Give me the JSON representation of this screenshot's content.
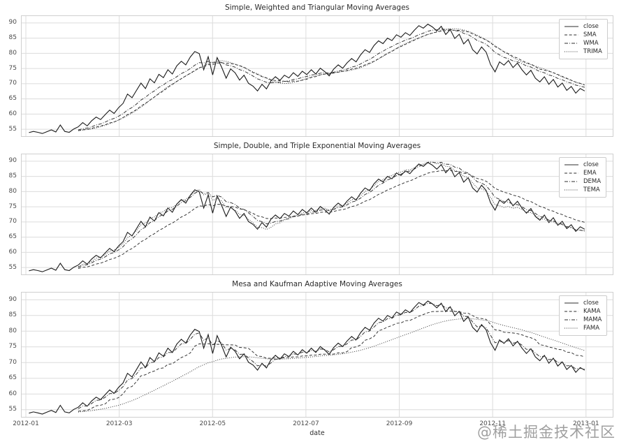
{
  "figure": {
    "watermark": "@稀土掘金技术社区",
    "xlabel": "date",
    "x_tick_labels": [
      "2012-01",
      "2012-03",
      "2012-05",
      "2012-07",
      "2012-09",
      "2012-11",
      "2013-01"
    ],
    "y_tick_labels": [
      90,
      85,
      80,
      75,
      70,
      65,
      60,
      55
    ],
    "line_color": "#1a1a1a",
    "ma_color": "#2e2e2e",
    "grid_color": "#dcdcdc",
    "border_color": "#cfcfcf"
  },
  "chart_data": [
    {
      "type": "line",
      "title": "Simple, Weighted and Triangular Moving Averages",
      "x_range": [
        "2012-01",
        "2013-01"
      ],
      "ylim": [
        52.5,
        92.5
      ],
      "yticks": [
        55,
        60,
        65,
        70,
        75,
        80,
        85,
        90
      ],
      "grid": true,
      "legend_position": "upper right",
      "legend": [
        "close",
        "SMA",
        "WMA",
        "TRIMA"
      ],
      "series": [
        {
          "name": "close",
          "line_style": "solid",
          "algo": "raw"
        },
        {
          "name": "SMA",
          "line_style": "dashed",
          "algo": "sma",
          "window": 12,
          "start": 11
        },
        {
          "name": "WMA",
          "line_style": "dashdot",
          "algo": "wma",
          "window": 12,
          "start": 11
        },
        {
          "name": "TRIMA",
          "line_style": "dotted",
          "algo": "trima",
          "window": 12,
          "start": 11
        }
      ],
      "close_values": [
        53.9,
        54.3,
        54.0,
        53.6,
        54.2,
        54.8,
        54.1,
        56.4,
        54.3,
        54.0,
        55.1,
        55.8,
        57.2,
        56.1,
        57.8,
        59.0,
        58.2,
        59.8,
        61.3,
        60.2,
        62.1,
        63.5,
        66.6,
        65.4,
        67.8,
        70.2,
        68.4,
        71.6,
        70.3,
        73.1,
        72.0,
        74.6,
        73.2,
        75.9,
        77.4,
        76.2,
        78.8,
        80.6,
        79.9,
        74.6,
        78.9,
        72.9,
        78.6,
        75.4,
        71.8,
        74.9,
        73.6,
        71.2,
        72.8,
        70.1,
        69.2,
        67.6,
        69.8,
        68.3,
        70.9,
        72.3,
        71.1,
        72.8,
        71.9,
        73.6,
        72.4,
        74.1,
        73.0,
        74.6,
        73.2,
        75.1,
        74.0,
        72.6,
        74.8,
        76.2,
        75.1,
        76.9,
        78.3,
        77.2,
        79.5,
        81.2,
        80.3,
        82.6,
        84.1,
        83.2,
        85.0,
        84.2,
        86.1,
        85.3,
        86.8,
        85.9,
        87.6,
        89.1,
        88.3,
        89.6,
        88.7,
        87.4,
        88.9,
        86.2,
        87.8,
        84.9,
        86.3,
        83.1,
        84.6,
        81.2,
        79.8,
        82.1,
        80.4,
        76.3,
        73.9,
        77.2,
        76.1,
        77.6,
        75.3,
        76.8,
        74.6,
        72.9,
        74.4,
        71.8,
        70.6,
        72.3,
        69.8,
        71.4,
        68.9,
        70.2,
        67.8,
        69.1,
        66.9,
        68.4,
        67.6
      ]
    },
    {
      "type": "line",
      "title": "Simple, Double, and Triple Exponential Moving Averages",
      "x_range": [
        "2012-01",
        "2013-01"
      ],
      "ylim": [
        52.5,
        92.5
      ],
      "yticks": [
        55,
        60,
        65,
        70,
        75,
        80,
        85,
        90
      ],
      "grid": true,
      "legend_position": "upper right",
      "legend": [
        "close",
        "EMA",
        "DEMA",
        "TEMA"
      ],
      "series": [
        {
          "name": "close",
          "line_style": "solid",
          "algo": "raw"
        },
        {
          "name": "EMA",
          "line_style": "dashed",
          "algo": "ema",
          "window": 12,
          "start": 11
        },
        {
          "name": "DEMA",
          "line_style": "dashdot",
          "algo": "dema",
          "window": 12,
          "start": 11
        },
        {
          "name": "TEMA",
          "line_style": "dotted",
          "algo": "tema",
          "window": 12,
          "start": 11
        }
      ],
      "close_values": [
        53.9,
        54.3,
        54.0,
        53.6,
        54.2,
        54.8,
        54.1,
        56.4,
        54.3,
        54.0,
        55.1,
        55.8,
        57.2,
        56.1,
        57.8,
        59.0,
        58.2,
        59.8,
        61.3,
        60.2,
        62.1,
        63.5,
        66.6,
        65.4,
        67.8,
        70.2,
        68.4,
        71.6,
        70.3,
        73.1,
        72.0,
        74.6,
        73.2,
        75.9,
        77.4,
        76.2,
        78.8,
        80.6,
        79.9,
        74.6,
        78.9,
        72.9,
        78.6,
        75.4,
        71.8,
        74.9,
        73.6,
        71.2,
        72.8,
        70.1,
        69.2,
        67.6,
        69.8,
        68.3,
        70.9,
        72.3,
        71.1,
        72.8,
        71.9,
        73.6,
        72.4,
        74.1,
        73.0,
        74.6,
        73.2,
        75.1,
        74.0,
        72.6,
        74.8,
        76.2,
        75.1,
        76.9,
        78.3,
        77.2,
        79.5,
        81.2,
        80.3,
        82.6,
        84.1,
        83.2,
        85.0,
        84.2,
        86.1,
        85.3,
        86.8,
        85.9,
        87.6,
        89.1,
        88.3,
        89.6,
        88.7,
        87.4,
        88.9,
        86.2,
        87.8,
        84.9,
        86.3,
        83.1,
        84.6,
        81.2,
        79.8,
        82.1,
        80.4,
        76.3,
        73.9,
        77.2,
        76.1,
        77.6,
        75.3,
        76.8,
        74.6,
        72.9,
        74.4,
        71.8,
        70.6,
        72.3,
        69.8,
        71.4,
        68.9,
        70.2,
        67.8,
        69.1,
        66.9,
        68.4,
        67.6
      ]
    },
    {
      "type": "line",
      "title": "Mesa and Kaufman Adaptive Moving Averages",
      "x_range": [
        "2012-01",
        "2013-01"
      ],
      "ylim": [
        52.5,
        92.5
      ],
      "yticks": [
        55,
        60,
        65,
        70,
        75,
        80,
        85,
        90
      ],
      "grid": true,
      "legend_position": "upper right",
      "legend": [
        "close",
        "KAMA",
        "MAMA",
        "FAMA"
      ],
      "series": [
        {
          "name": "close",
          "line_style": "solid",
          "algo": "raw"
        },
        {
          "name": "KAMA",
          "line_style": "dashed",
          "algo": "kama",
          "window": 5,
          "start": 11
        },
        {
          "name": "MAMA",
          "line_style": "dashdot",
          "algo": "mama",
          "alpha": 0.5,
          "start": 11
        },
        {
          "name": "FAMA",
          "line_style": "dotted",
          "algo": "fama",
          "alpha": 0.07,
          "start": 11
        }
      ],
      "close_values": [
        53.9,
        54.3,
        54.0,
        53.6,
        54.2,
        54.8,
        54.1,
        56.4,
        54.3,
        54.0,
        55.1,
        55.8,
        57.2,
        56.1,
        57.8,
        59.0,
        58.2,
        59.8,
        61.3,
        60.2,
        62.1,
        63.5,
        66.6,
        65.4,
        67.8,
        70.2,
        68.4,
        71.6,
        70.3,
        73.1,
        72.0,
        74.6,
        73.2,
        75.9,
        77.4,
        76.2,
        78.8,
        80.6,
        79.9,
        74.6,
        78.9,
        72.9,
        78.6,
        75.4,
        71.8,
        74.9,
        73.6,
        71.2,
        72.8,
        70.1,
        69.2,
        67.6,
        69.8,
        68.3,
        70.9,
        72.3,
        71.1,
        72.8,
        71.9,
        73.6,
        72.4,
        74.1,
        73.0,
        74.6,
        73.2,
        75.1,
        74.0,
        72.6,
        74.8,
        76.2,
        75.1,
        76.9,
        78.3,
        77.2,
        79.5,
        81.2,
        80.3,
        82.6,
        84.1,
        83.2,
        85.0,
        84.2,
        86.1,
        85.3,
        86.8,
        85.9,
        87.6,
        89.1,
        88.3,
        89.6,
        88.7,
        87.4,
        88.9,
        86.2,
        87.8,
        84.9,
        86.3,
        83.1,
        84.6,
        81.2,
        79.8,
        82.1,
        80.4,
        76.3,
        73.9,
        77.2,
        76.1,
        77.6,
        75.3,
        76.8,
        74.6,
        72.9,
        74.4,
        71.8,
        70.6,
        72.3,
        69.8,
        71.4,
        68.9,
        70.2,
        67.8,
        69.1,
        66.9,
        68.4,
        67.6
      ]
    }
  ]
}
